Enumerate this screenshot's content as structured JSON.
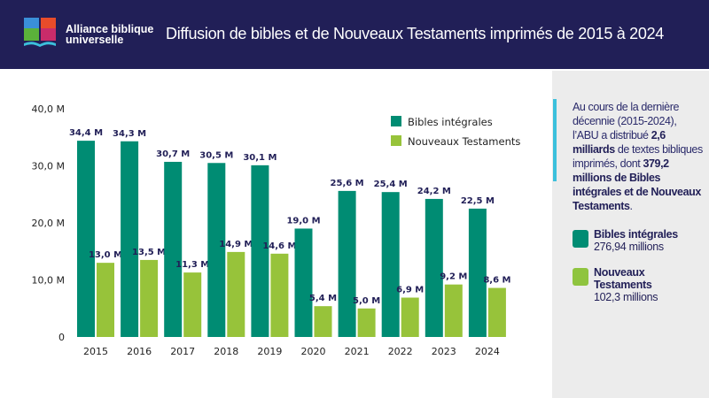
{
  "header": {
    "brand": "Alliance biblique universelle",
    "brand_line1": "Alliance biblique",
    "brand_line2": "universelle",
    "title": "Diffusion de bibles et de Nouveaux Testaments imprimés de 2015 à 2024"
  },
  "sidebar": {
    "text_parts": [
      "Au cours de la dernière décennie (2015-2024), l’ABU a distribué ",
      "2,6 milliards",
      " de textes bibliques imprimés, dont ",
      "379,2 millions de Bibles intégrales et de Nouveaux Testaments",
      "."
    ],
    "legend": [
      {
        "label": "Bibles intégrales",
        "value": "276,94 millions",
        "icon": "book-icon",
        "color": "#008c73"
      },
      {
        "label": "Nouveaux Testaments",
        "value": "102,3 millions",
        "icon": "book-icon",
        "color": "#8fc43f"
      }
    ]
  },
  "chart_data": {
    "type": "bar",
    "categories": [
      "2015",
      "2016",
      "2017",
      "2018",
      "2019",
      "2020",
      "2021",
      "2022",
      "2023",
      "2024"
    ],
    "series": [
      {
        "name": "Bibles intégrales",
        "color": "#008c73",
        "values": [
          34.4,
          34.3,
          30.7,
          30.5,
          30.1,
          19.0,
          25.6,
          25.4,
          24.2,
          22.5
        ],
        "labels": [
          "34,4 M",
          "34,3 M",
          "30,7 M",
          "30,5 M",
          "30,1 M",
          "19,0 M",
          "25,6 M",
          "25,4 M",
          "24,2 M",
          "22,5 M"
        ]
      },
      {
        "name": "Nouveaux Testaments",
        "color": "#97c33a",
        "values": [
          13.0,
          13.5,
          11.3,
          14.9,
          14.6,
          5.4,
          5.0,
          6.9,
          9.2,
          8.6
        ],
        "labels": [
          "13,0 M",
          "13,5 M",
          "11,3 M",
          "14,9 M",
          "14,6 M",
          "5,4 M",
          "5,0 M",
          "6,9 M",
          "9,2 M",
          "8,6 M"
        ]
      }
    ],
    "yticks": [
      0,
      10,
      20,
      30,
      40
    ],
    "ytick_labels": [
      "0",
      "10,0 M",
      "20,0 M",
      "30,0 M",
      "40,0 M"
    ],
    "ylim": [
      0,
      40
    ],
    "legend_position": "top-right",
    "grid": false
  }
}
